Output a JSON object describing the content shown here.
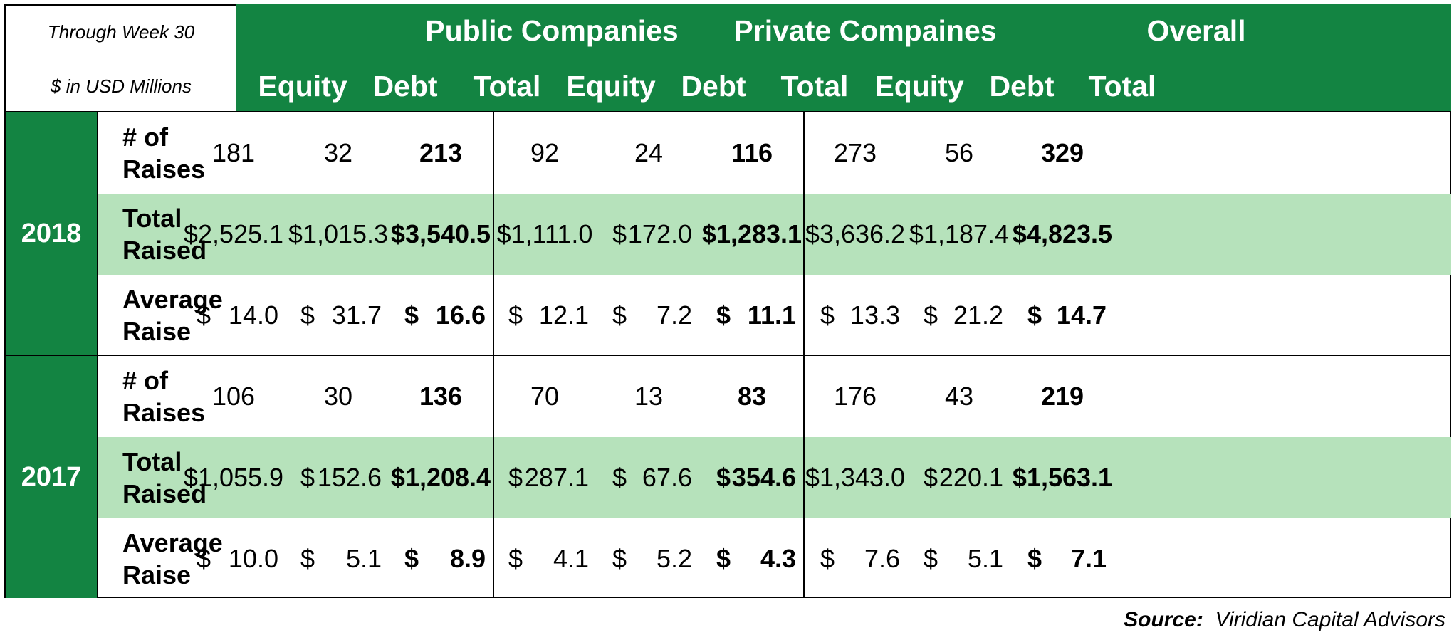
{
  "notes": {
    "period": "Through Week 30",
    "units": "$ in USD Millions"
  },
  "groups": [
    "Public Companies",
    "Private Compaines",
    "Overall"
  ],
  "columns": [
    "Equity",
    "Debt",
    "Total",
    "Equity",
    "Debt",
    "Total",
    "Equity",
    "Debt",
    "Total"
  ],
  "row_labels": {
    "count": [
      "# of",
      "Raises"
    ],
    "total": [
      "Total",
      "Raised"
    ],
    "avg": [
      "Average",
      "Raise"
    ]
  },
  "source_label": "Source:",
  "source_value": "Viridian Capital Advisors",
  "chart_data": {
    "type": "table",
    "title": "",
    "notes": [
      "Through Week 30",
      "$ in USD Millions"
    ],
    "column_groups": [
      "Public Companies",
      "Private Compaines",
      "Overall"
    ],
    "columns": [
      "Equity",
      "Debt",
      "Total",
      "Equity",
      "Debt",
      "Total",
      "Equity",
      "Debt",
      "Total"
    ],
    "years": [
      {
        "year": "2018",
        "rows": [
          {
            "label": "# of Raises",
            "cells": [
              {
                "v": "181"
              },
              {
                "v": "32"
              },
              {
                "v": "213"
              },
              {
                "v": "92"
              },
              {
                "v": "24"
              },
              {
                "v": "116"
              },
              {
                "v": "273"
              },
              {
                "v": "56"
              },
              {
                "v": "329"
              }
            ]
          },
          {
            "label": "Total Raised",
            "cells": [
              {
                "v": "$2,525.1"
              },
              {
                "v": "$1,015.3"
              },
              {
                "v": "$3,540.5"
              },
              {
                "v": "$1,111.0"
              },
              {
                "cur": "$",
                "v": "172.0"
              },
              {
                "v": "$1,283.1"
              },
              {
                "v": "$3,636.2"
              },
              {
                "v": "$1,187.4"
              },
              {
                "v": "$4,823.5"
              }
            ]
          },
          {
            "label": "Average Raise",
            "cells": [
              {
                "cur": "$",
                "v": "14.0"
              },
              {
                "cur": "$",
                "v": "31.7"
              },
              {
                "cur": "$",
                "v": "16.6"
              },
              {
                "cur": "$",
                "v": "12.1"
              },
              {
                "cur": "$",
                "v": "7.2"
              },
              {
                "cur": "$",
                "v": "11.1"
              },
              {
                "cur": "$",
                "v": "13.3"
              },
              {
                "cur": "$",
                "v": "21.2"
              },
              {
                "cur": "$",
                "v": "14.7"
              }
            ]
          }
        ]
      },
      {
        "year": "2017",
        "rows": [
          {
            "label": "# of Raises",
            "cells": [
              {
                "v": "106"
              },
              {
                "v": "30"
              },
              {
                "v": "136"
              },
              {
                "v": "70"
              },
              {
                "v": "13"
              },
              {
                "v": "83"
              },
              {
                "v": "176"
              },
              {
                "v": "43"
              },
              {
                "v": "219"
              }
            ]
          },
          {
            "label": "Total Raised",
            "cells": [
              {
                "v": "$1,055.9"
              },
              {
                "cur": "$",
                "v": "152.6"
              },
              {
                "v": "$1,208.4"
              },
              {
                "cur": "$",
                "v": "287.1"
              },
              {
                "cur": "$",
                "v": "67.6"
              },
              {
                "cur": "$",
                "v": "354.6"
              },
              {
                "v": "$1,343.0"
              },
              {
                "cur": "$",
                "v": "220.1"
              },
              {
                "v": "$1,563.1"
              }
            ]
          },
          {
            "label": "Average Raise",
            "cells": [
              {
                "cur": "$",
                "v": "10.0"
              },
              {
                "cur": "$",
                "v": "5.1"
              },
              {
                "cur": "$",
                "v": "8.9"
              },
              {
                "cur": "$",
                "v": "4.1"
              },
              {
                "cur": "$",
                "v": "5.2"
              },
              {
                "cur": "$",
                "v": "4.3"
              },
              {
                "cur": "$",
                "v": "7.6"
              },
              {
                "cur": "$",
                "v": "5.1"
              },
              {
                "cur": "$",
                "v": "7.1"
              }
            ]
          }
        ]
      }
    ]
  }
}
